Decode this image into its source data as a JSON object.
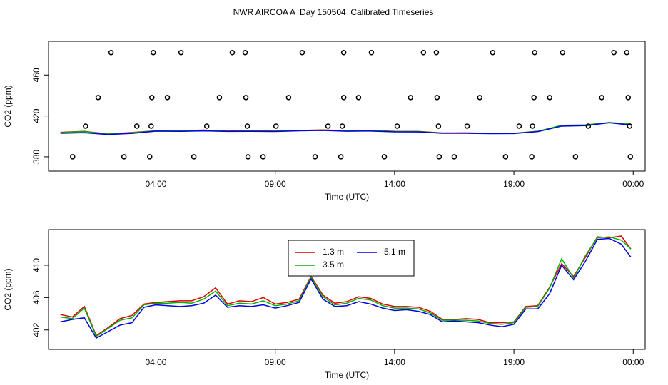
{
  "title": "NWR AIRCOA A  Day 150504  Calibrated Timeseries",
  "chart_data": [
    {
      "type": "line",
      "xlabel": "Time (UTC)",
      "ylabel": "CO2 (ppm)",
      "xlim": [
        -0.5,
        24.5
      ],
      "ylim": [
        366,
        493
      ],
      "xticks": [
        {
          "value": 4,
          "label": "04:00"
        },
        {
          "value": 9,
          "label": "09:00"
        },
        {
          "value": 14,
          "label": "14:00"
        },
        {
          "value": 19,
          "label": "19:00"
        },
        {
          "value": 24,
          "label": "00:00"
        }
      ],
      "yticks": [
        380,
        420,
        460
      ],
      "x": [
        0,
        1,
        2,
        3,
        4,
        5,
        6,
        7,
        8,
        9,
        10,
        11,
        12,
        13,
        14,
        15,
        16,
        17,
        18,
        19,
        20,
        21,
        22,
        23,
        23.9
      ],
      "series": [
        {
          "color": "#e00000",
          "values": [
            403.9,
            404.9,
            402.3,
            403.8,
            405.4,
            405.6,
            406.1,
            405.2,
            405.5,
            405.2,
            405.8,
            406.3,
            405.5,
            405.9,
            404.9,
            404.8,
            403.3,
            403.4,
            402.9,
            403.0,
            405.0,
            410.2,
            411.0,
            413.4,
            412.0
          ]
        },
        {
          "color": "#00b000",
          "values": [
            403.6,
            404.7,
            402.2,
            403.5,
            405.3,
            405.4,
            405.8,
            405.0,
            405.2,
            405.0,
            405.6,
            406.1,
            405.3,
            405.7,
            404.7,
            404.6,
            403.2,
            403.2,
            402.8,
            402.9,
            404.9,
            410.8,
            411.2,
            413.5,
            412.0
          ]
        },
        {
          "color": "#0000e0",
          "values": [
            403.0,
            403.5,
            401.8,
            402.9,
            405.1,
            404.9,
            405.3,
            404.8,
            404.9,
            404.7,
            405.4,
            405.8,
            405.0,
            405.2,
            404.4,
            404.3,
            403.0,
            403.0,
            402.6,
            402.7,
            404.6,
            410.0,
            410.5,
            413.3,
            411.0
          ]
        }
      ],
      "points": {
        "color": "#000000",
        "x": [
          2.12,
          3.89,
          5.05,
          7.2,
          7.74,
          10.13,
          11.87,
          13.03,
          15.21,
          15.75,
          18.11,
          19.87,
          21.04,
          23.19,
          23.73,
          1.58,
          3.83,
          4.48,
          6.66,
          7.77,
          9.56,
          11.87,
          12.49,
          14.67,
          15.78,
          17.57,
          19.84,
          20.5,
          22.68,
          23.79,
          1.05,
          3.2,
          3.8,
          6.13,
          7.83,
          9.03,
          11.21,
          11.81,
          14.11,
          15.84,
          17.04,
          19.22,
          19.78,
          22.12,
          23.85,
          0.51,
          2.66,
          3.74,
          5.59,
          7.86,
          8.49,
          10.67,
          11.75,
          13.57,
          15.87,
          16.5,
          18.65,
          19.75,
          21.58,
          23.88
        ],
        "y": [
          482,
          482,
          482,
          482,
          482,
          482,
          482,
          482,
          482,
          482,
          482,
          482,
          482,
          482,
          482,
          438,
          438,
          438,
          438,
          438,
          438,
          438,
          438,
          438,
          438,
          438,
          438,
          438,
          438,
          438,
          410,
          410,
          410,
          410,
          410,
          410,
          410,
          410,
          410,
          410,
          410,
          410,
          410,
          410,
          410,
          380,
          380,
          380,
          380,
          380,
          380,
          380,
          380,
          380,
          380,
          380,
          380,
          380,
          380,
          380
        ]
      }
    },
    {
      "type": "line",
      "xlabel": "Time (UTC)",
      "ylabel": "CO2 (ppm)",
      "xlim": [
        -0.5,
        24.5
      ],
      "ylim": [
        399.6,
        414.4
      ],
      "xticks": [
        {
          "value": 4,
          "label": "04:00"
        },
        {
          "value": 9,
          "label": "09:00"
        },
        {
          "value": 14,
          "label": "14:00"
        },
        {
          "value": 19,
          "label": "19:00"
        },
        {
          "value": 24,
          "label": "00:00"
        }
      ],
      "yticks": [
        402,
        406,
        410
      ],
      "legend": "top",
      "x": [
        0,
        0.5,
        1,
        1.5,
        2,
        2.5,
        3,
        3.5,
        4,
        4.5,
        5,
        5.5,
        6,
        6.5,
        7,
        7.5,
        8,
        8.5,
        9,
        9.5,
        10,
        10.5,
        11,
        11.5,
        12,
        12.5,
        13,
        13.5,
        14,
        14.5,
        15,
        15.5,
        16,
        16.5,
        17,
        17.5,
        18,
        18.5,
        19,
        19.5,
        20,
        20.5,
        21,
        21.5,
        22,
        22.5,
        23,
        23.5,
        23.9
      ],
      "series": [
        {
          "name": "1.3 m",
          "color": "#e00000",
          "values": [
            403.9,
            403.6,
            404.9,
            401.3,
            402.3,
            403.4,
            403.8,
            405.2,
            405.4,
            405.5,
            405.6,
            405.6,
            406.1,
            407.2,
            405.2,
            405.6,
            405.5,
            406.0,
            405.2,
            405.4,
            405.8,
            408.6,
            406.3,
            405.3,
            405.5,
            406.1,
            405.9,
            405.2,
            404.9,
            404.9,
            404.8,
            404.3,
            403.3,
            403.3,
            403.4,
            403.3,
            402.9,
            402.9,
            403.0,
            404.9,
            405.0,
            407.3,
            410.2,
            408.6,
            411.0,
            413.5,
            413.4,
            413.6,
            412.0
          ]
        },
        {
          "name": "3.5 m",
          "color": "#00b000",
          "values": [
            403.6,
            403.4,
            404.7,
            401.2,
            402.2,
            403.2,
            403.5,
            405.1,
            405.3,
            405.3,
            405.4,
            405.3,
            405.8,
            406.8,
            405.0,
            405.3,
            405.2,
            405.6,
            405.0,
            405.2,
            405.6,
            408.5,
            406.1,
            405.1,
            405.3,
            405.9,
            405.7,
            405.0,
            404.7,
            404.7,
            404.6,
            404.1,
            403.2,
            403.2,
            403.2,
            403.1,
            402.8,
            402.7,
            402.9,
            404.8,
            404.9,
            407.2,
            410.8,
            408.4,
            411.2,
            413.4,
            413.5,
            413.1,
            412.0
          ]
        },
        {
          "name": "5.1 m",
          "color": "#0000e0",
          "values": [
            403.0,
            403.3,
            403.5,
            401.0,
            401.8,
            402.6,
            402.9,
            404.8,
            405.1,
            405.0,
            404.9,
            405.0,
            405.3,
            406.3,
            404.8,
            405.0,
            404.9,
            405.1,
            404.7,
            405.0,
            405.4,
            408.3,
            405.8,
            404.9,
            405.0,
            405.5,
            405.2,
            404.7,
            404.4,
            404.5,
            404.3,
            403.9,
            403.0,
            403.1,
            403.0,
            402.9,
            402.6,
            402.4,
            402.7,
            404.6,
            404.6,
            406.5,
            410.0,
            408.2,
            410.5,
            413.2,
            413.3,
            412.6,
            411.0
          ]
        }
      ]
    }
  ]
}
